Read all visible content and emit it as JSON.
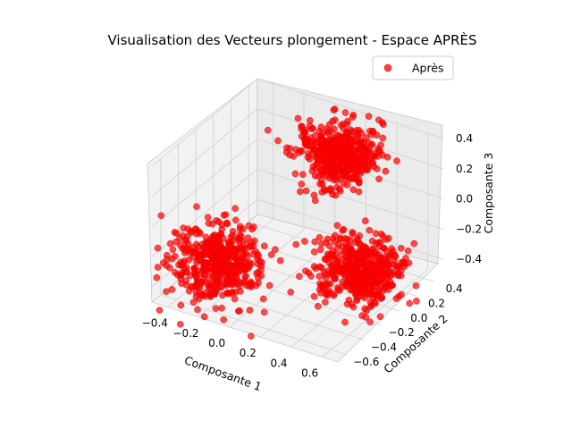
{
  "chart_data": {
    "type": "scatter",
    "projection": "3d",
    "title": "Visualisation des Vecteurs plongement - Espace APRÈS",
    "xlabel": "Composante 1",
    "ylabel": "Composante 2",
    "zlabel": "Composante 3",
    "xlim": [
      -0.5,
      0.7
    ],
    "ylim": [
      -0.7,
      0.5
    ],
    "zlim": [
      -0.5,
      0.4
    ],
    "x_ticks": [
      "−0.4",
      "−0.2",
      "0.0",
      "0.2",
      "0.4",
      "0.6"
    ],
    "y_ticks": [
      "−0.6",
      "−0.4",
      "−0.2",
      "0.0",
      "0.2",
      "0.4"
    ],
    "z_ticks": [
      "−0.4",
      "−0.2",
      "0.0",
      "0.2",
      "0.4"
    ],
    "grid": true,
    "legend": {
      "position": "top-right",
      "entries": [
        "Après"
      ]
    },
    "series": [
      {
        "name": "Après",
        "color": "#ff0000",
        "alpha": 0.7,
        "marker": "circle",
        "clusters": [
          {
            "center": [
              -0.25,
              -0.4,
              -0.3
            ],
            "spread": 0.13,
            "label_note": ""
          },
          {
            "center": [
              0.15,
              0.3,
              0.2
            ],
            "spread": 0.11,
            "label_note": ""
          },
          {
            "center": [
              0.5,
              -0.1,
              -0.25
            ],
            "spread": 0.12,
            "label_note": ""
          }
        ]
      }
    ]
  },
  "colors": {
    "pane": "#f2f2f2",
    "pane_side": "#ebebeb",
    "grid": "#d0d0d0",
    "marker": "#ff0000",
    "marker_edge": "#e00000"
  }
}
